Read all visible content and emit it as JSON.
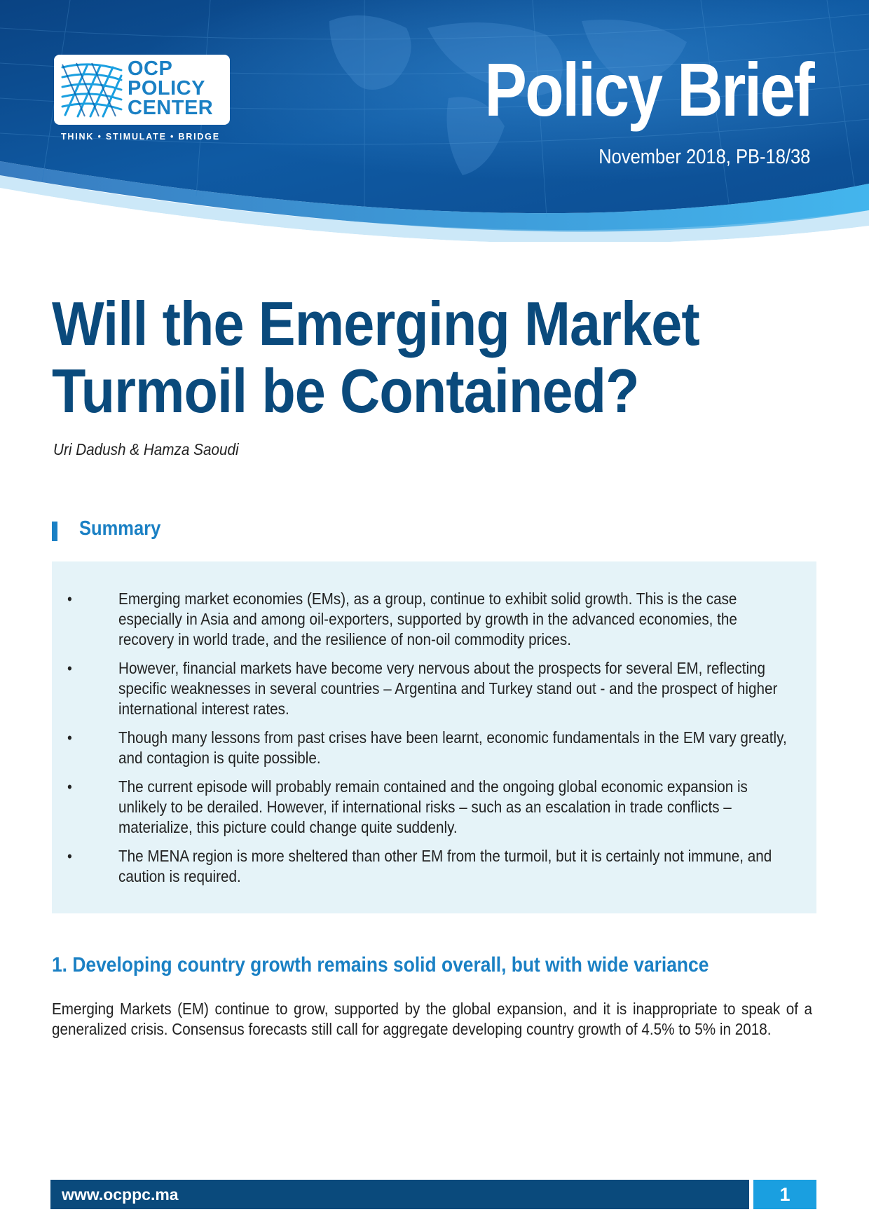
{
  "header": {
    "logo_lines": [
      "OCP",
      "POLICY",
      "CENTER"
    ],
    "logo_tagline": "THINK • STIMULATE • BRIDGE",
    "brief_title": "Policy Brief",
    "brief_date": "November 2018, PB-18/38",
    "colors": {
      "banner_dark": "#0b4f8f",
      "banner_light": "#1a9fe0",
      "logo_blue": "#1a80c4"
    }
  },
  "document": {
    "title_line1": "Will the Emerging Market",
    "title_line2": "Turmoil be Contained?",
    "authors": "Uri Dadush & Hamza Saoudi",
    "title_color": "#0a4a7c"
  },
  "summary": {
    "heading": "Summary",
    "bullet_glyph": "•",
    "box_color": "#e5f3f8",
    "items": [
      "Emerging market economies (EMs), as a group, continue to exhibit solid growth. This is the case especially in Asia and among oil-exporters, supported by growth in the advanced economies, the recovery in world trade, and the resilience of non-oil commodity prices.",
      "However, financial markets have become very nervous about the prospects for several EM, reflecting specific weaknesses in several countries – Argentina and Turkey stand out - and the prospect of higher international interest rates.",
      "Though many lessons from past crises have been learnt, economic fundamentals in the EM vary greatly, and contagion is quite possible.",
      "The current episode will probably remain contained and the ongoing global economic expansion is unlikely to be derailed. However, if international risks – such as an escalation in trade conflicts – materialize, this picture could change quite suddenly.",
      "The MENA region is more sheltered than other EM from the turmoil, but it is certainly not immune, and caution is required."
    ]
  },
  "section1": {
    "heading": "1. Developing country growth remains solid overall, but with wide variance",
    "paragraph": "Emerging Markets (EM) continue to grow, supported by the global expansion, and it is inappropriate to speak of a generalized crisis. Consensus forecasts still call for aggregate developing country growth of 4.5% to 5% in 2018."
  },
  "footer": {
    "url": "www.ocppc.ma",
    "page_number": "1",
    "bar_color": "#0a4a7c",
    "page_box_color": "#1a9fe0"
  }
}
